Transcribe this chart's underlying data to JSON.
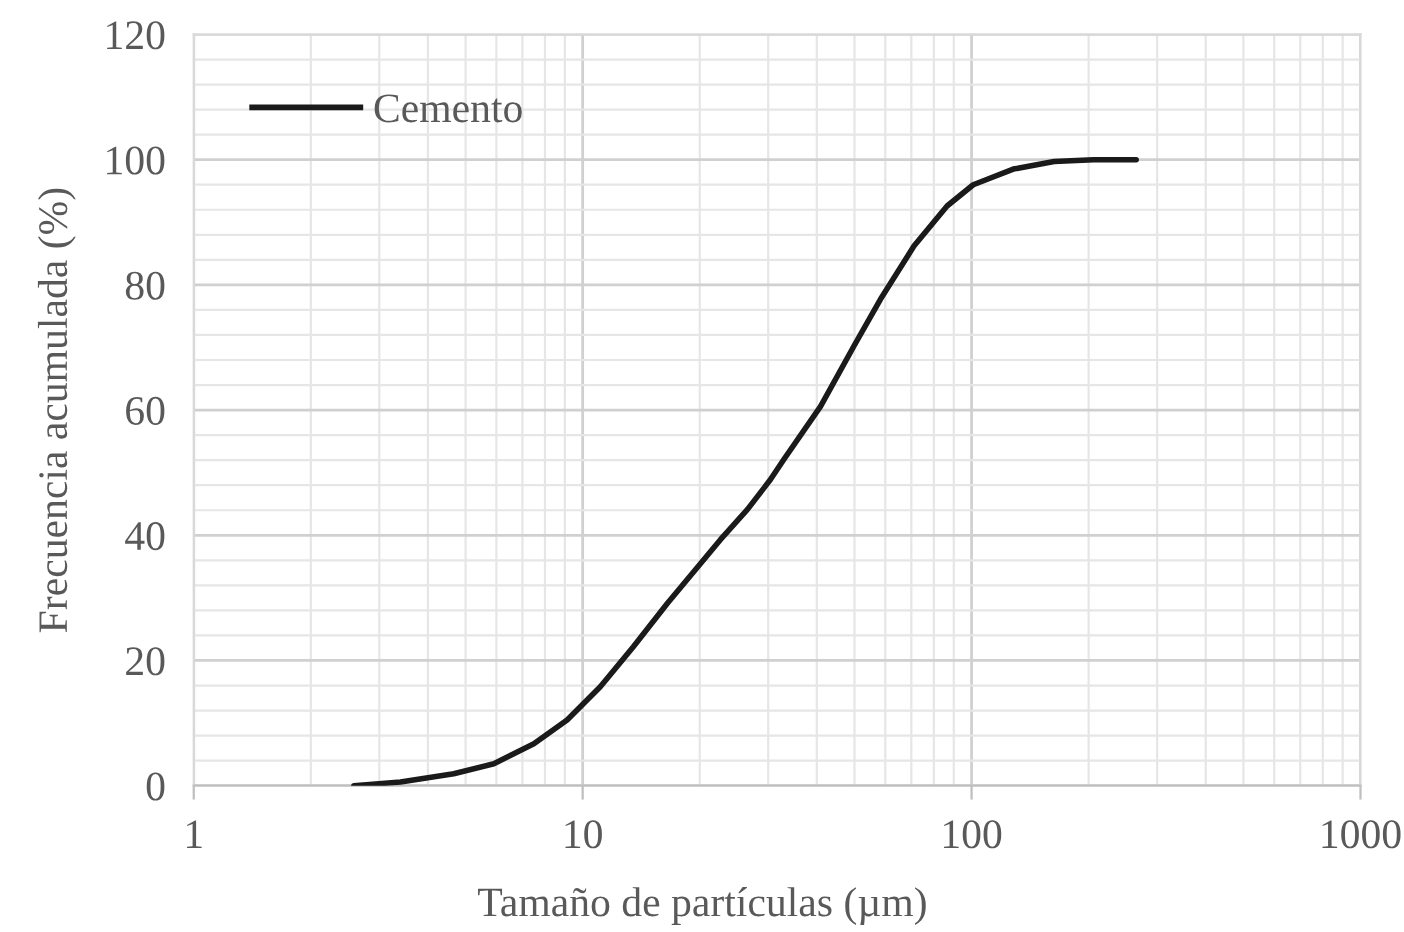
{
  "chart_data": {
    "type": "line",
    "xlabel": "Tamaño de partículas (µm)",
    "ylabel": "Frecuencia acumulada (%)",
    "log": "x",
    "xlim": [
      1,
      1000
    ],
    "xticks": [
      1,
      10,
      100,
      1000
    ],
    "ylim": [
      0,
      120
    ],
    "yticks": [
      0,
      20,
      40,
      60,
      80,
      100,
      120
    ],
    "grid": true,
    "legend": "top left",
    "marker": "none",
    "line_style": "solid",
    "series": [
      {
        "name": "Cemento",
        "color": "#1a1a1a",
        "x": [
          2.58,
          3.4,
          4.66,
          5.91,
          7.49,
          9.12,
          11.1,
          13.5,
          16.5,
          22.6,
          26.5,
          30.4,
          32.9,
          40.9,
          49.8,
          58.3,
          71.1,
          86.5,
          101,
          128,
          163,
          206,
          265
        ],
        "values": [
          0,
          0.6,
          1.9,
          3.5,
          6.7,
          10.5,
          15.8,
          22.2,
          29.1,
          39.3,
          44.1,
          48.9,
          52.1,
          60.6,
          70.2,
          77.7,
          86.2,
          92.6,
          96.0,
          98.5,
          99.7,
          100,
          100
        ]
      }
    ]
  }
}
